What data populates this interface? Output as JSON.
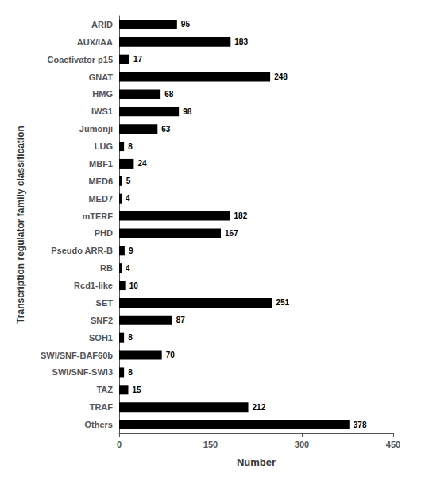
{
  "chart_data": {
    "type": "bar",
    "orientation": "horizontal",
    "categories": [
      "ARID",
      "AUX/IAA",
      "Coactivator p15",
      "GNAT",
      "HMG",
      "IWS1",
      "Jumonji",
      "LUG",
      "MBF1",
      "MED6",
      "MED7",
      "mTERF",
      "PHD",
      "Pseudo ARR-B",
      "RB",
      "Rcd1-like",
      "SET",
      "SNF2",
      "SOH1",
      "SWI/SNF-BAF60b",
      "SWI/SNF-SWI3",
      "TAZ",
      "TRAF",
      "Others"
    ],
    "values": [
      95,
      183,
      17,
      248,
      68,
      98,
      63,
      8,
      24,
      5,
      4,
      182,
      167,
      9,
      4,
      10,
      251,
      87,
      8,
      70,
      8,
      15,
      212,
      378
    ],
    "color": "#000000",
    "xlabel": "Number",
    "ylabel": "Transcription regulator family classification",
    "xlim": [
      0,
      450
    ],
    "xticks": [
      0,
      150,
      300,
      450
    ],
    "grid": false,
    "data_labels": true
  }
}
